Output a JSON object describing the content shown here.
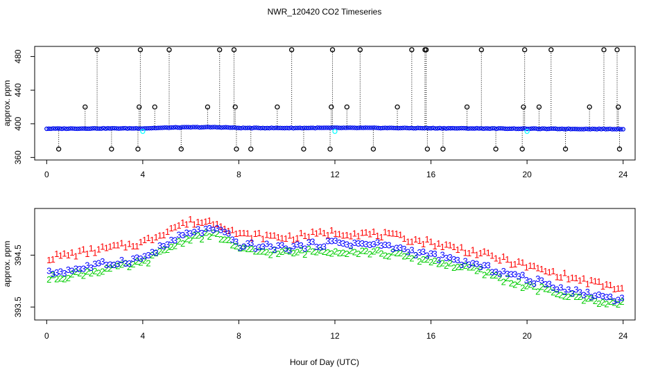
{
  "title": "NWR_120420  CO2 Timeseries",
  "xlabel": "Hour of Day (UTC)",
  "colors": {
    "level1": "#ff0000",
    "level2": "#00cc00",
    "level3": "#0000ff",
    "cyan": "#00ffff",
    "spike": "#000000"
  },
  "chart_data": [
    {
      "type": "scatter",
      "name": "top-panel",
      "ylabel": "approx. ppm",
      "xlim": [
        -0.5,
        24.5
      ],
      "ylim": [
        357,
        492
      ],
      "xticks": [
        0,
        4,
        8,
        12,
        16,
        20,
        24
      ],
      "yticks": [
        360,
        400,
        440,
        480
      ],
      "baseline": {
        "x": [
          0,
          2,
          4,
          5.3,
          6,
          7,
          7.5,
          8,
          10,
          12,
          14,
          16,
          18,
          20,
          22,
          24
        ],
        "y": [
          394.2,
          394.5,
          394.6,
          395.6,
          395.9,
          396.0,
          395.7,
          395.1,
          395.0,
          395.2,
          395.1,
          394.8,
          394.5,
          394.2,
          393.9,
          393.8
        ]
      },
      "spikes": {
        "x": [
          0.5,
          1.6,
          2.1,
          2.7,
          3.8,
          3.85,
          3.9,
          4.5,
          5.1,
          5.6,
          6.7,
          7.2,
          7.8,
          7.85,
          7.9,
          8.5,
          9.6,
          10.2,
          10.7,
          11.8,
          11.85,
          11.9,
          12.5,
          13.05,
          13.6,
          14.6,
          15.2,
          15.75,
          15.8,
          15.85,
          16.5,
          17.5,
          18.1,
          18.7,
          19.8,
          19.85,
          19.9,
          20.5,
          21.0,
          21.6,
          22.6,
          23.2,
          23.75,
          23.8,
          23.85
        ],
        "y": [
          370,
          420,
          488,
          370,
          370,
          420,
          488,
          420,
          488,
          370,
          420,
          488,
          488,
          420,
          370,
          370,
          420,
          488,
          370,
          370,
          420,
          488,
          420,
          488,
          370,
          420,
          488,
          488,
          488,
          370,
          370,
          420,
          488,
          370,
          370,
          420,
          488,
          420,
          488,
          370,
          420,
          488,
          488,
          420,
          370
        ]
      },
      "cyan_points": {
        "x": [
          4.0,
          12.0,
          20.0
        ],
        "y": [
          391,
          391,
          391
        ]
      }
    },
    {
      "type": "scatter",
      "name": "bottom-panel",
      "ylabel": "approx. ppm",
      "xlim": [
        -0.5,
        24.5
      ],
      "ylim": [
        393.25,
        395.4
      ],
      "xticks": [
        0,
        4,
        8,
        12,
        16,
        20,
        24
      ],
      "yticks": [
        393.5,
        394.5
      ],
      "ytick_labels": [
        "393.5",
        "394.5"
      ],
      "series": [
        {
          "name": "1",
          "x": [
            0,
            2,
            4,
            5.3,
            6,
            7,
            7.5,
            8,
            10,
            12,
            14,
            16,
            18,
            20,
            22,
            24
          ],
          "y": [
            394.45,
            394.6,
            394.75,
            395.05,
            395.15,
            395.15,
            395.05,
            394.9,
            394.85,
            394.95,
            394.9,
            394.75,
            394.55,
            394.3,
            394.05,
            393.85
          ]
        },
        {
          "name": "2",
          "x": [
            0,
            2,
            4,
            5.3,
            6,
            7,
            7.5,
            8,
            10,
            12,
            14,
            16,
            18,
            20,
            22,
            24
          ],
          "y": [
            394.05,
            394.2,
            394.35,
            394.7,
            394.85,
            394.9,
            394.8,
            394.6,
            394.55,
            394.6,
            394.55,
            394.4,
            394.2,
            393.9,
            393.7,
            393.55
          ]
        },
        {
          "name": "3",
          "x": [
            0,
            2,
            4,
            5.3,
            6,
            7,
            7.5,
            8,
            10,
            12,
            14,
            16,
            18,
            20,
            22,
            24
          ],
          "y": [
            394.15,
            394.3,
            394.45,
            394.8,
            394.95,
            395.0,
            394.9,
            394.7,
            394.65,
            394.75,
            394.7,
            394.5,
            394.3,
            394.05,
            393.8,
            393.65
          ]
        }
      ]
    }
  ]
}
